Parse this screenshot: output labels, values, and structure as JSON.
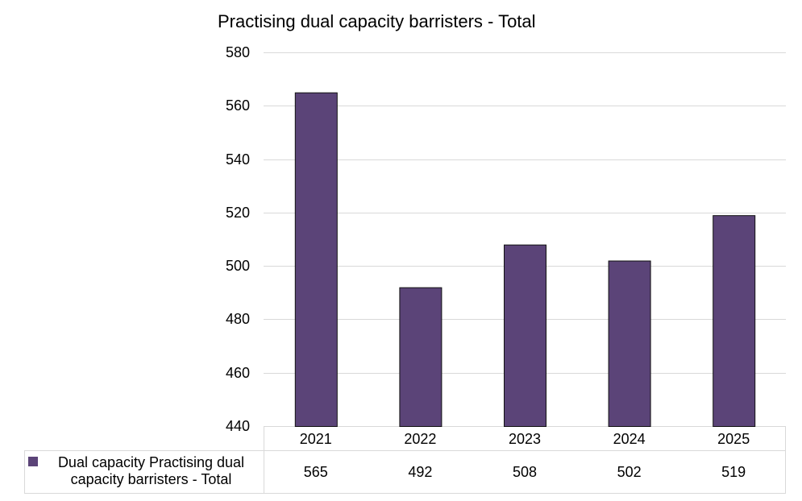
{
  "chart_data": {
    "type": "bar",
    "title": "Practising dual capacity barristers - Total",
    "categories": [
      "2021",
      "2022",
      "2023",
      "2024",
      "2025"
    ],
    "series": [
      {
        "name": "Dual capacity Practising dual capacity barristers - Total",
        "values": [
          565,
          492,
          508,
          502,
          519
        ],
        "color": "#5b4478"
      }
    ],
    "ylim": [
      440,
      580
    ],
    "yticks": [
      "580",
      "560",
      "540",
      "520",
      "500",
      "480",
      "460",
      "440"
    ],
    "grid": true,
    "legend": "data-table-left",
    "data_table": true
  }
}
